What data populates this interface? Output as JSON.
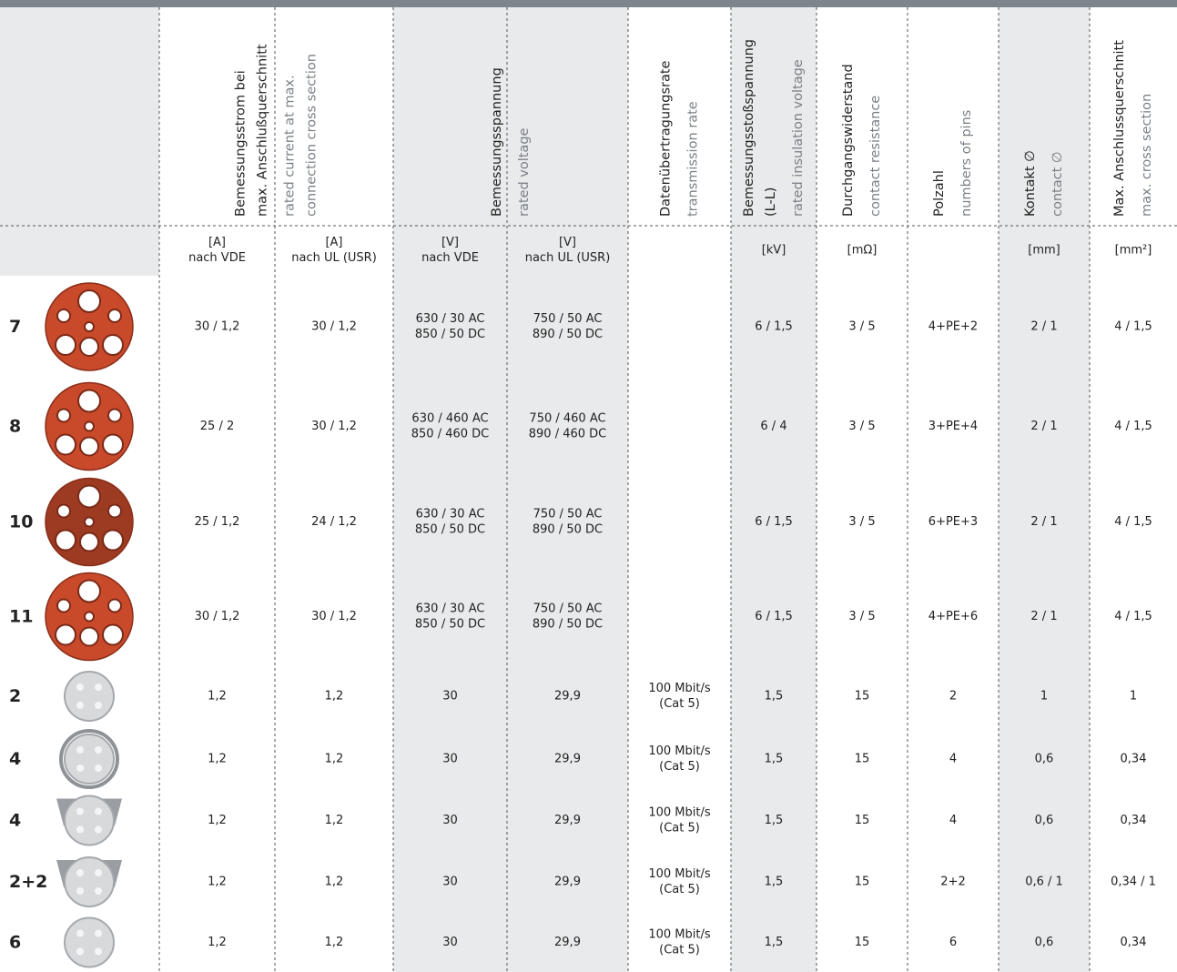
{
  "header": {
    "columns": [
      {
        "lines": [
          "Bemessungsstrom bei",
          "max. Anschlußquerschnitt"
        ],
        "sub_lines": [
          "rated current at max.",
          "connection cross section"
        ]
      },
      {
        "lines": [
          "Bemessungsspannung"
        ],
        "sub_lines": [
          "rated voltage"
        ]
      },
      {
        "lines": [
          "Datenübertragungsrate"
        ],
        "sub_lines": [
          "transmission rate"
        ]
      },
      {
        "lines": [
          "Bemessungsstoßspannung",
          "(L-L)"
        ],
        "sub_lines": [
          "rated insulation voltage"
        ]
      },
      {
        "lines": [
          "Durchgangswiderstand"
        ],
        "sub_lines": [
          "contact resistance"
        ]
      },
      {
        "lines": [
          "Polzahl"
        ],
        "sub_lines": [
          "numbers of pins"
        ]
      },
      {
        "lines": [
          "Kontakt ∅"
        ],
        "sub_lines": [
          "contact ∅"
        ]
      },
      {
        "lines": [
          "Max. Anschlussquerschnitt"
        ],
        "sub_lines": [
          "max. cross section"
        ]
      }
    ]
  },
  "units": [
    [
      "[A]",
      "nach VDE"
    ],
    [
      "[A]",
      "nach UL (USR)"
    ],
    [
      "[V]",
      "nach VDE"
    ],
    [
      "[V]",
      "nach UL (USR)"
    ],
    null,
    [
      "[kV]"
    ],
    [
      "[mΩ]"
    ],
    null,
    [
      "[mm]"
    ],
    [
      "[mm²]"
    ]
  ],
  "rows": [
    {
      "label": "7",
      "cells": [
        "30 / 1,2",
        "30 / 1,2",
        [
          "630 / 30 AC",
          "850 / 50 DC"
        ],
        [
          "750 / 50 AC",
          "890 / 50 DC"
        ],
        null,
        "6 / 1,5",
        "3 / 5",
        "4+PE+2",
        "2 / 1",
        "4 / 1,5"
      ]
    },
    {
      "label": "8",
      "cells": [
        "25 / 2",
        "30 / 1,2",
        [
          "630 / 460 AC",
          "850 / 460 DC"
        ],
        [
          "750 / 460 AC",
          "890 / 460 DC"
        ],
        null,
        "6 / 4",
        "3 / 5",
        "3+PE+4",
        "2 / 1",
        "4 / 1,5"
      ]
    },
    {
      "label": "10",
      "cells": [
        "25 / 1,2",
        "24 / 1,2",
        [
          "630 / 30 AC",
          "850 / 50 DC"
        ],
        [
          "750 / 50 AC",
          "890 / 50 DC"
        ],
        null,
        "6 / 1,5",
        "3 / 5",
        "6+PE+3",
        "2 / 1",
        "4 / 1,5"
      ]
    },
    {
      "label": "11",
      "cells": [
        "30 / 1,2",
        "30 / 1,2",
        [
          "630 / 30 AC",
          "850 / 50 DC"
        ],
        [
          "750 / 50 AC",
          "890 / 50 DC"
        ],
        null,
        "6 / 1,5",
        "3 / 5",
        "4+PE+6",
        "2 / 1",
        "4 / 1,5"
      ]
    },
    {
      "label": "2",
      "cells": [
        "1,2",
        "1,2",
        "30",
        "29,9",
        [
          "100 Mbit/s",
          "(Cat 5)"
        ],
        "1,5",
        "15",
        "2",
        "1",
        "1"
      ]
    },
    {
      "label": "4",
      "cells": [
        "1,2",
        "1,2",
        "30",
        "29,9",
        [
          "100 Mbit/s",
          "(Cat 5)"
        ],
        "1,5",
        "15",
        "4",
        "0,6",
        "0,34"
      ]
    },
    {
      "label": "4",
      "cells": [
        "1,2",
        "1,2",
        "30",
        "29,9",
        [
          "100 Mbit/s",
          "(Cat 5)"
        ],
        "1,5",
        "15",
        "4",
        "0,6",
        "0,34"
      ]
    },
    {
      "label": "2+2",
      "cells": [
        "1,2",
        "1,2",
        "30",
        "29,9",
        [
          "100 Mbit/s",
          "(Cat 5)"
        ],
        "1,5",
        "15",
        "2+2",
        "0,6 / 1",
        "0,34 / 1"
      ]
    },
    {
      "label": "6",
      "cells": [
        "1,2",
        "1,2",
        "30",
        "29,9",
        [
          "100 Mbit/s",
          "(Cat 5)"
        ],
        "1,5",
        "15",
        "6",
        "0,6",
        "0,34"
      ]
    }
  ]
}
